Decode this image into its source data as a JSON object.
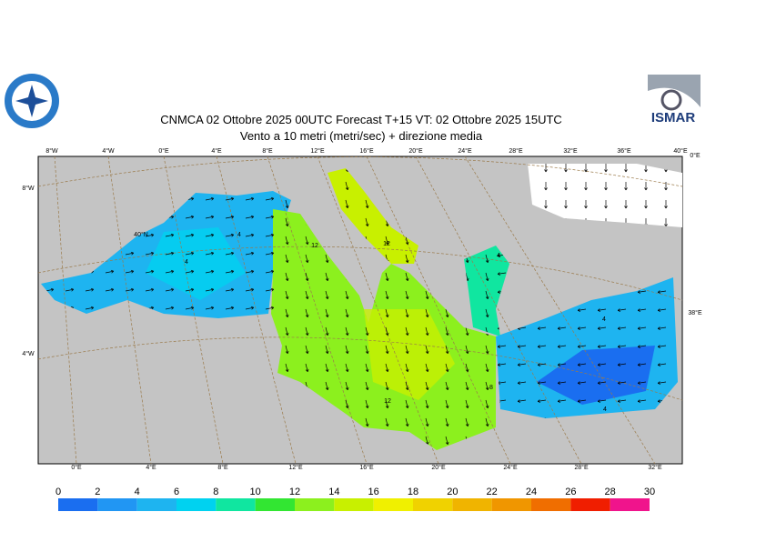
{
  "header": {
    "title": "CNMCA 02  Ottobre  2025 00UTC Forecast T+15 VT: 02  Ottobre  2025 15UTC",
    "subtitle": "Vento a 10 metri (metri/sec) + direzione media"
  },
  "logo_right": "ISMAR",
  "map": {
    "top_labels": [
      "8°W",
      "4°W",
      "0°E",
      "4°E",
      "8°E",
      "12°E",
      "16°E",
      "20°E",
      "24°E",
      "28°E",
      "32°E",
      "36°E",
      "40°E"
    ],
    "bottom_labels": [
      "0°E",
      "4°E",
      "8°E",
      "12°E",
      "16°E",
      "20°E",
      "24°E",
      "28°E",
      "32°E"
    ],
    "left_labels": [
      "8°W",
      "4°W"
    ],
    "right_labels": [
      "0°E",
      "38°E"
    ],
    "inner_labels": [
      "40°N"
    ],
    "contour_labels": [
      "4",
      "4",
      "12",
      "12",
      "4",
      "4",
      "8",
      "12",
      "4"
    ]
  },
  "colorbar": {
    "ticks": [
      0,
      2,
      4,
      6,
      8,
      10,
      12,
      14,
      16,
      18,
      20,
      22,
      24,
      26,
      28,
      30
    ],
    "colors": [
      "#1a6ef0",
      "#2196f3",
      "#1eb4f0",
      "#00d2f0",
      "#10e6a0",
      "#32e632",
      "#8cf01e",
      "#c8f000",
      "#f0f000",
      "#f0d200",
      "#f0b400",
      "#f09600",
      "#f06e00",
      "#f01e00",
      "#f0148c"
    ]
  }
}
